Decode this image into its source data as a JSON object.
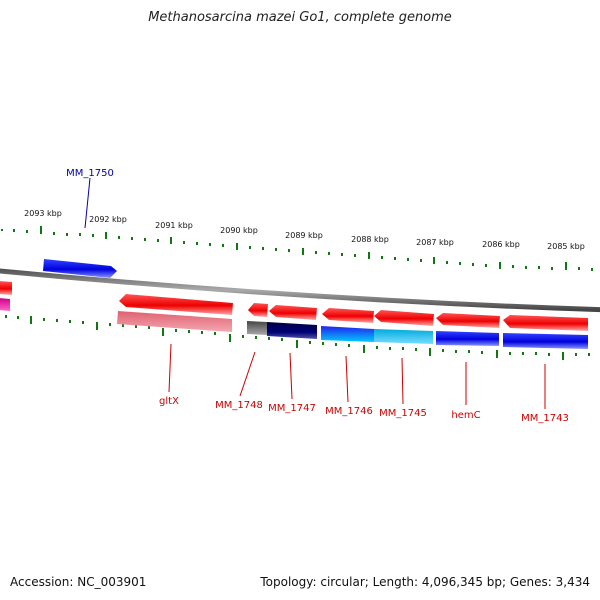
{
  "title": "Methanosarcina mazei Go1, complete genome",
  "footer": {
    "accession": "Accession: NC_003901",
    "stats": "Topology: circular; Length: 4,096,345 bp; Genes: 3,434"
  },
  "colors": {
    "plus_strand": "#0000dd",
    "minus_strand": "#ee0000",
    "tick": "#117711",
    "label_minus": "#cc0000",
    "label_plus": "#0000aa"
  },
  "kbp_labels": [
    "2093 kbp",
    "2092 kbp",
    "2091 kbp",
    "2090 kbp",
    "2089 kbp",
    "2088 kbp",
    "2087 kbp",
    "2086 kbp",
    "2085 kbp"
  ],
  "gene_labels": [
    "MM_1750",
    "gltX",
    "MM_1748",
    "MM_1747",
    "MM_1746",
    "MM_1745",
    "hemC",
    "MM_1743"
  ]
}
